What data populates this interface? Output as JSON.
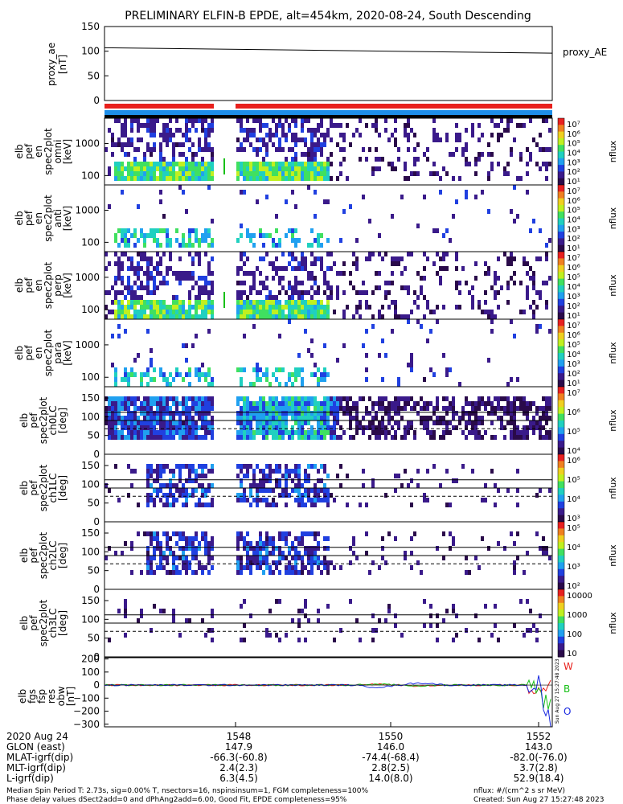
{
  "title": "PRELIMINARY ELFIN-B EPDE, alt=454km, 2020-08-24, South Descending",
  "colors": {
    "red_bar": "#e8201c",
    "blue_bar": "#1e8ee8",
    "black_bar": "#000000",
    "wave_w": "#e8201c",
    "wave_b": "#18c018",
    "wave_o": "#1828e0"
  },
  "chart_data": [
    {
      "type": "line",
      "ylabel": [
        "proxy_ae",
        "[nT]"
      ],
      "ylim": [
        0,
        150
      ],
      "yticks": [
        "150",
        "100",
        "50",
        "0"
      ],
      "series": [
        {
          "name": "proxy_AE",
          "values": [
            107,
            96
          ]
        }
      ]
    },
    {
      "type": "heatmap",
      "ylabel": [
        "elb",
        "pef",
        "en",
        "spec2plot",
        "omni",
        "[keV]"
      ],
      "yticks": [
        "1000",
        "100"
      ],
      "colorbar": {
        "label": "nflux",
        "ticks": [
          "10⁷",
          "10⁶",
          "10⁵",
          "10⁴",
          "10³",
          "10²",
          "10¹"
        ]
      }
    },
    {
      "type": "heatmap",
      "ylabel": [
        "elb",
        "pef",
        "en",
        "spec2plot",
        "anti",
        "[keV]"
      ],
      "yticks": [
        "1000",
        "100"
      ],
      "colorbar": {
        "label": "nflux",
        "ticks": [
          "10⁷",
          "10⁶",
          "10⁵",
          "10⁴",
          "10³",
          "10²",
          "10¹"
        ]
      }
    },
    {
      "type": "heatmap",
      "ylabel": [
        "elb",
        "pef",
        "en",
        "spec2plot",
        "perp",
        "[keV]"
      ],
      "yticks": [
        "1000",
        "100"
      ],
      "colorbar": {
        "label": "nflux",
        "ticks": [
          "10⁷",
          "10⁶",
          "10⁵",
          "10⁴",
          "10³",
          "10²",
          "10¹"
        ]
      }
    },
    {
      "type": "heatmap",
      "ylabel": [
        "elb",
        "pef",
        "en",
        "spec2plot",
        "para",
        "[keV]"
      ],
      "yticks": [
        "1000",
        "100"
      ],
      "colorbar": {
        "label": "nflux",
        "ticks": [
          "10⁷",
          "10⁶",
          "10⁵",
          "10⁴",
          "10³",
          "10²",
          "10¹"
        ]
      }
    },
    {
      "type": "heatmap",
      "ylabel": [
        "elb",
        "pef",
        "spec2plot",
        "ch0LC",
        "[deg]"
      ],
      "yticks": [
        "150",
        "100",
        "50",
        "0"
      ],
      "ylim": [
        0,
        180
      ],
      "colorbar": {
        "label": "nflux",
        "ticks": [
          "10⁷",
          "10⁶",
          "10⁵",
          "10⁴"
        ]
      }
    },
    {
      "type": "heatmap",
      "ylabel": [
        "elb",
        "pef",
        "spec2plot",
        "ch1LC",
        "[deg]"
      ],
      "yticks": [
        "150",
        "100",
        "50",
        "0"
      ],
      "ylim": [
        0,
        180
      ],
      "colorbar": {
        "label": "nflux",
        "ticks": [
          "10⁶",
          "10⁵",
          "10⁴",
          "10³"
        ]
      }
    },
    {
      "type": "heatmap",
      "ylabel": [
        "elb",
        "pef",
        "spec2plot",
        "ch2LC",
        "[deg]"
      ],
      "yticks": [
        "150",
        "100",
        "50",
        "0"
      ],
      "ylim": [
        0,
        180
      ],
      "colorbar": {
        "label": "nflux",
        "ticks": [
          "10⁵",
          "10⁴",
          "10³",
          "10²"
        ]
      }
    },
    {
      "type": "heatmap",
      "ylabel": [
        "elb",
        "pef",
        "spec2plot",
        "ch3LC",
        "[deg]"
      ],
      "yticks": [
        "150",
        "100",
        "50",
        "0"
      ],
      "ylim": [
        0,
        180
      ],
      "colorbar": {
        "label": "nflux",
        "ticks": [
          "10000",
          "1000",
          "100",
          "10"
        ]
      }
    },
    {
      "type": "line",
      "ylabel": [
        "elb",
        "fgs",
        "fsp",
        "res",
        "obw",
        "[nT]"
      ],
      "yticks": [
        "200",
        "100",
        "0",
        "−100",
        "−200",
        "−300"
      ],
      "ylim": [
        -320,
        210
      ],
      "legend": [
        "W",
        "B",
        "O"
      ],
      "side_note": "Sun Aug 27 15:27:48 2023"
    }
  ],
  "x_axis": {
    "ticks": [
      "1548",
      "1550",
      "1552"
    ],
    "rows": [
      {
        "label": "2020 Aug 24",
        "values": [
          "",
          "",
          ""
        ]
      },
      {
        "label": "GLON (east)",
        "values": [
          "147.9",
          "146.0",
          "143.0"
        ]
      },
      {
        "label": "MLAT-igrf(dip)",
        "values": [
          "-66.3(-60.8)",
          "-74.4(-68.4)",
          "-82.0(-76.0)"
        ]
      },
      {
        "label": "MLT-igrf(dip)",
        "values": [
          "2.4(2.3)",
          "2.8(2.5)",
          "3.7(2.8)"
        ]
      },
      {
        "label": "L-igrf(dip)",
        "values": [
          "6.3(4.5)",
          "14.0(8.0)",
          "52.9(18.4)"
        ]
      }
    ]
  },
  "footer": {
    "left1": "Median Spin Period T: 2.73s, sig=0.00% T, nsectors=16, nspinsinsum=1, FGM completeness=100%",
    "left2": "Phase delay values dSect2add=0 and dPhAng2add=6.00, Good Fit, EPDE completeness=95%",
    "right1": "nflux: #/(cm^2 s sr MeV)",
    "right2": "Created: Sun Aug 27 15:27:48 2023"
  }
}
